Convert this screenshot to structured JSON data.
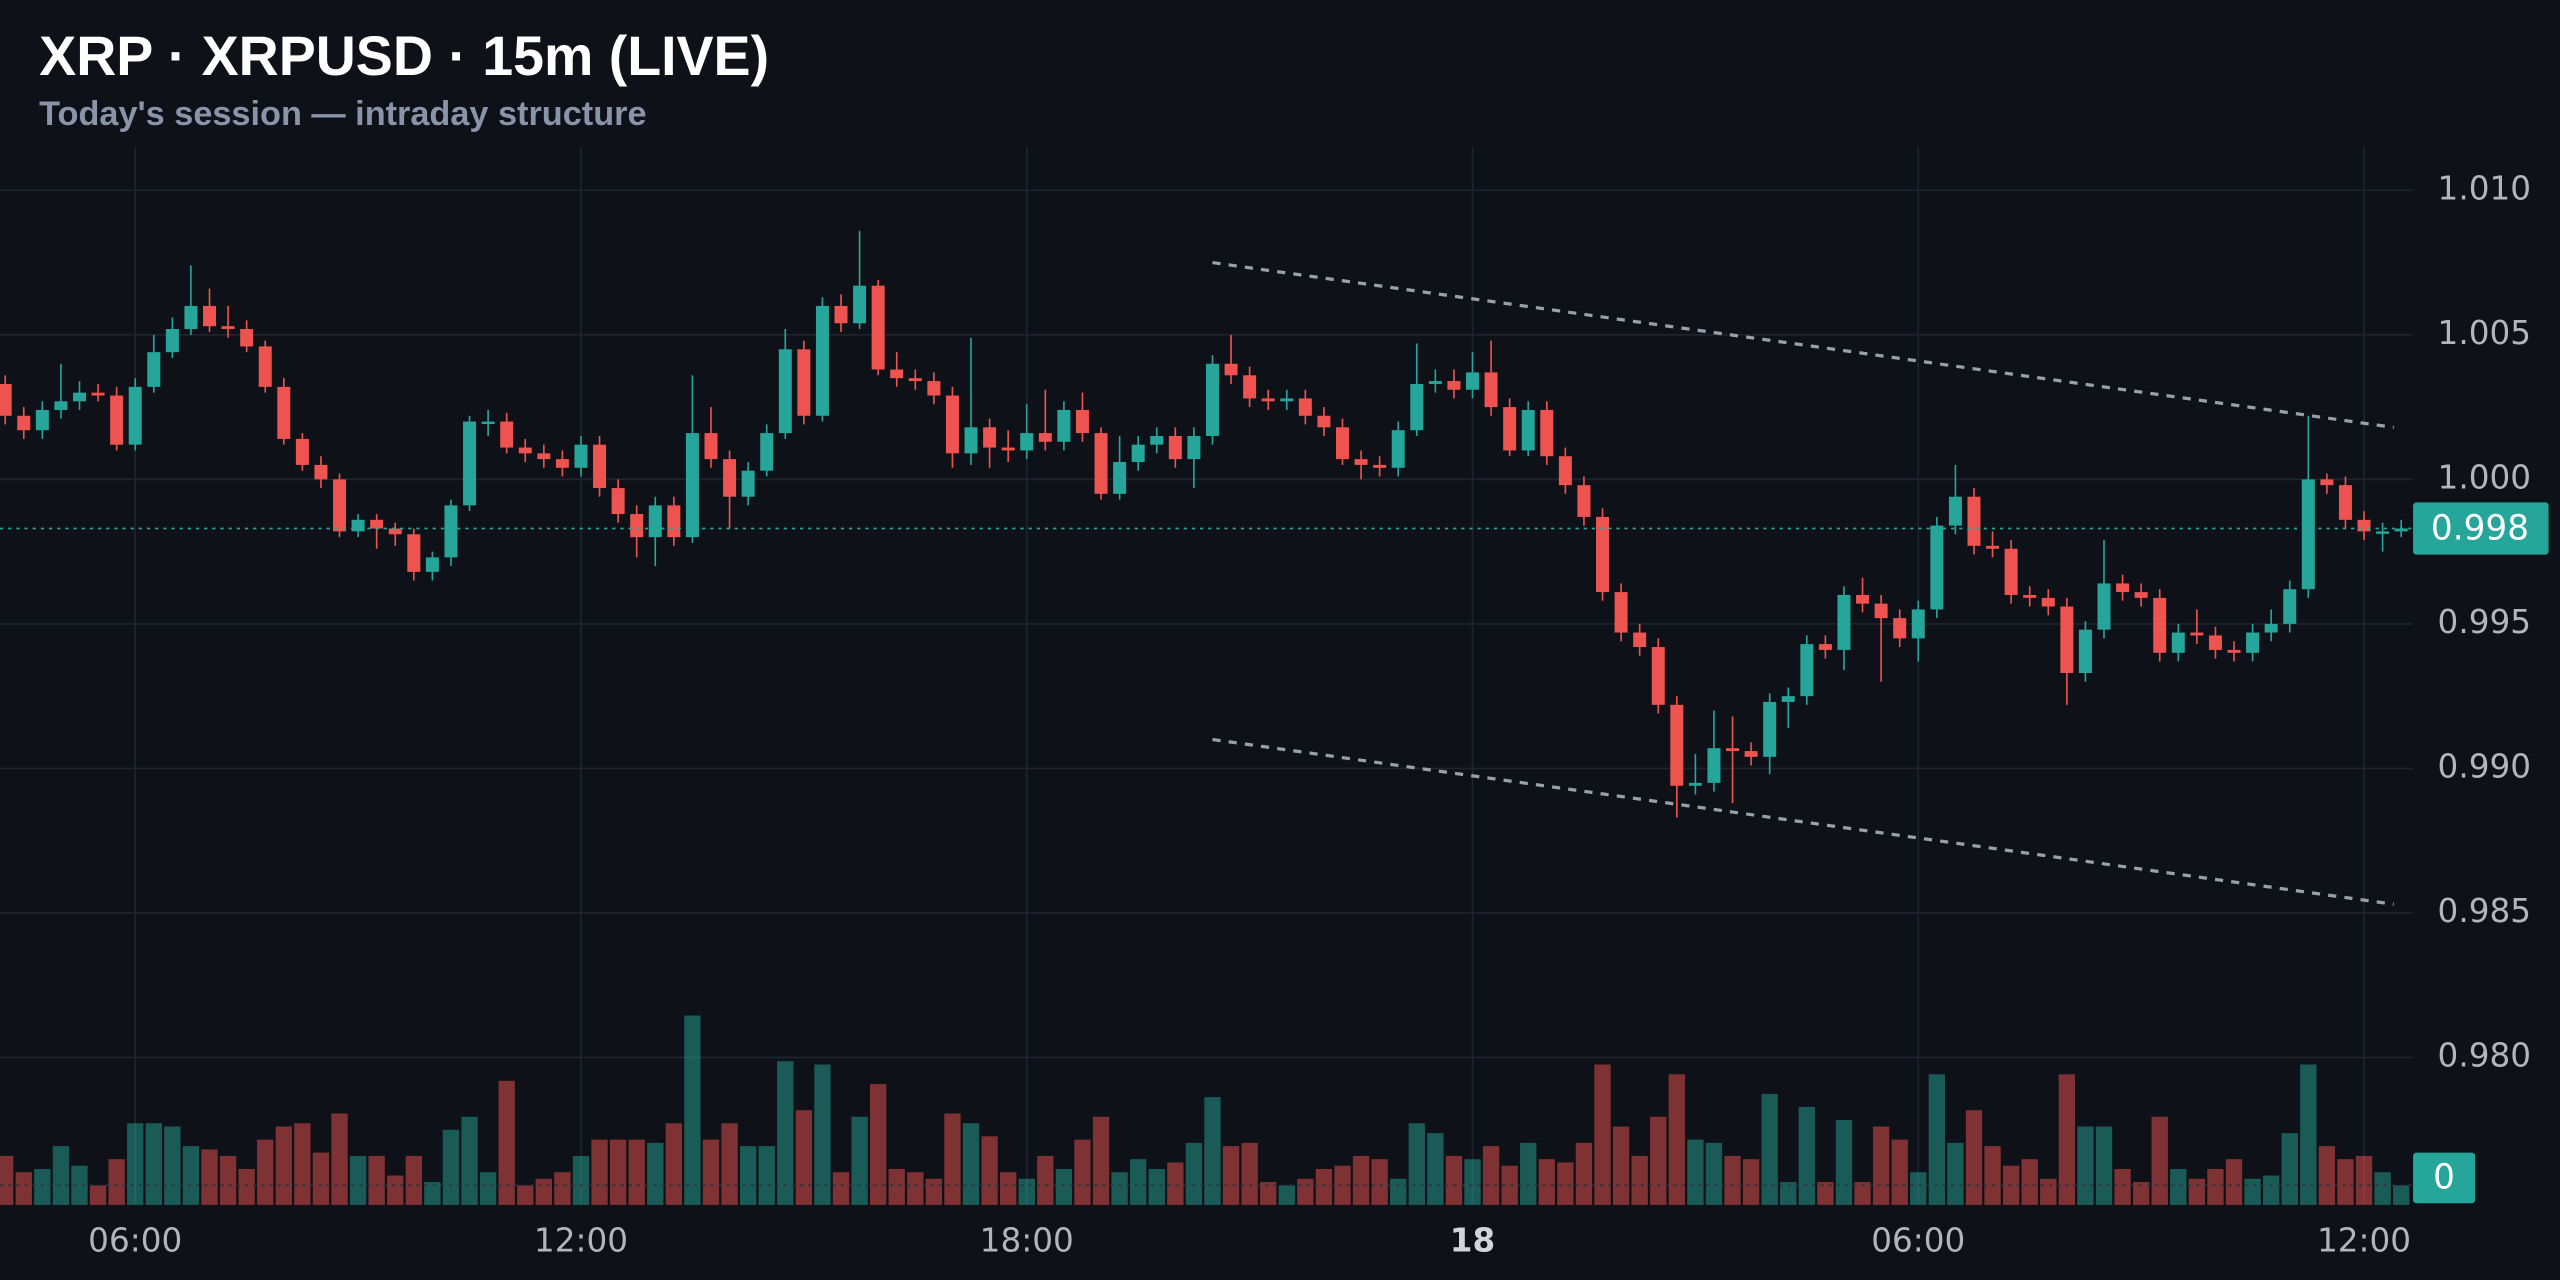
{
  "chart_data": {
    "type": "candlestick",
    "title": "XRP · XRPUSD · 15m (LIVE)",
    "subtitle": "Today's session — intraday structure",
    "up_color": "#26a69a",
    "down_color": "#ef5350",
    "grid": true,
    "xlim": [
      -19.82,
      12.66
    ],
    "xticks": [
      {
        "value": -18,
        "label": "06:00"
      },
      {
        "value": -12,
        "label": "12:00"
      },
      {
        "value": -6,
        "label": "18:00"
      },
      {
        "value": 0,
        "label": "18"
      },
      {
        "value": 6,
        "label": "06:00"
      },
      {
        "value": 12,
        "label": "12:00"
      }
    ],
    "ylim": [
      0.9749,
      1.0115
    ],
    "yticks": [
      {
        "value": 1.01,
        "label": "1.010"
      },
      {
        "value": 1.005,
        "label": "1.005"
      },
      {
        "value": 1.0,
        "label": "1.000"
      },
      {
        "value": 0.995,
        "label": "0.995"
      },
      {
        "value": 0.99,
        "label": "0.990"
      },
      {
        "value": 0.985,
        "label": "0.985"
      },
      {
        "value": 0.98,
        "label": "0.980"
      }
    ],
    "last_price_label": "0.998",
    "vlim": [
      0,
      140
    ],
    "vticks": [
      0
    ],
    "x": [
      -19.75,
      -19.5,
      -19.25,
      -19,
      -18.75,
      -18.5,
      -18.25,
      -18,
      -17.75,
      -17.5,
      -17.25,
      -17,
      -16.75,
      -16.5,
      -16.25,
      -16,
      -15.75,
      -15.5,
      -15.25,
      -15,
      -14.75,
      -14.5,
      -14.25,
      -14,
      -13.75,
      -13.5,
      -13.25,
      -13,
      -12.75,
      -12.5,
      -12.25,
      -12,
      -11.75,
      -11.5,
      -11.25,
      -11,
      -10.75,
      -10.5,
      -10.25,
      -10,
      -9.75,
      -9.5,
      -9.25,
      -9,
      -8.75,
      -8.5,
      -8.25,
      -8,
      -7.75,
      -7.5,
      -7.25,
      -7,
      -6.75,
      -6.5,
      -6.25,
      -6,
      -5.75,
      -5.5,
      -5.25,
      -5,
      -4.75,
      -4.5,
      -4.25,
      -4,
      -3.75,
      -3.5,
      -3.25,
      -3,
      -2.75,
      -2.5,
      -2.25,
      -2,
      -1.75,
      -1.5,
      -1.25,
      -1,
      -0.75,
      -0.5,
      -0.25,
      0,
      0.25,
      0.5,
      0.75,
      1,
      1.25,
      1.5,
      1.75,
      2,
      2.25,
      2.5,
      2.75,
      3,
      3.25,
      3.5,
      3.75,
      4,
      4.25,
      4.5,
      4.75,
      5,
      5.25,
      5.5,
      5.75,
      6,
      6.25,
      6.5,
      6.75,
      7,
      7.25,
      7.5,
      7.75,
      8,
      8.25,
      8.5,
      8.75,
      9,
      9.25,
      9.5,
      9.75,
      10,
      10.25,
      10.5,
      10.75,
      11,
      11.25,
      11.5,
      11.75,
      12,
      12.25,
      12.5
    ],
    "open": [
      1.0033,
      1.0022,
      1.0017,
      1.0024,
      1.0027,
      1.003,
      1.0029,
      1.0012,
      1.0032,
      1.0044,
      1.0052,
      1.006,
      1.0053,
      1.0052,
      1.0046,
      1.0032,
      1.0014,
      1.0005,
      1.0,
      0.9982,
      0.9986,
      0.9983,
      0.9981,
      0.9968,
      0.9973,
      0.9991,
      1.002,
      1.002,
      1.0011,
      1.0009,
      1.0007,
      1.0004,
      1.0012,
      0.9997,
      0.9988,
      0.998,
      0.9991,
      0.998,
      1.0016,
      1.0007,
      0.9994,
      1.0003,
      1.0016,
      1.0045,
      1.0022,
      1.006,
      1.0054,
      1.0067,
      1.0038,
      1.0035,
      1.0034,
      1.0029,
      1.0009,
      1.0018,
      1.0011,
      1.001,
      1.0016,
      1.0013,
      1.0024,
      1.0016,
      0.9995,
      1.0006,
      1.0012,
      1.0015,
      1.0007,
      1.0015,
      1.004,
      1.0036,
      1.0028,
      1.0027,
      1.0028,
      1.0022,
      1.0018,
      1.0007,
      1.0005,
      1.0004,
      1.0017,
      1.0033,
      1.0034,
      1.0031,
      1.0037,
      1.0025,
      1.001,
      1.0024,
      1.0008,
      0.9998,
      0.9987,
      0.9961,
      0.9947,
      0.9942,
      0.9922,
      0.9894,
      0.9895,
      0.9907,
      0.9906,
      0.9904,
      0.9923,
      0.9925,
      0.9943,
      0.9941,
      0.996,
      0.9957,
      0.9952,
      0.9945,
      0.9955,
      0.9984,
      0.9994,
      0.9977,
      0.9976,
      0.996,
      0.9959,
      0.9956,
      0.9933,
      0.9948,
      0.9964,
      0.9961,
      0.9959,
      0.994,
      0.9947,
      0.9946,
      0.9941,
      0.994,
      0.9947,
      0.995,
      0.9962,
      1.0,
      0.9998,
      0.9986,
      0.9982,
      0.9982
    ],
    "high": [
      1.0036,
      1.0025,
      1.0027,
      1.004,
      1.0034,
      1.0033,
      1.0032,
      1.0035,
      1.005,
      1.0056,
      1.0074,
      1.0066,
      1.006,
      1.0055,
      1.0048,
      1.0035,
      1.0016,
      1.0008,
      1.0002,
      0.9988,
      0.9988,
      0.9985,
      0.9983,
      0.9975,
      0.9993,
      1.0022,
      1.0024,
      1.0023,
      1.0014,
      1.0012,
      1.001,
      1.0015,
      1.0015,
      1.0,
      0.9991,
      0.9994,
      0.9994,
      1.0036,
      1.0025,
      1.001,
      1.0006,
      1.0019,
      1.0052,
      1.0048,
      1.0063,
      1.0064,
      1.0086,
      1.0069,
      1.0044,
      1.0038,
      1.0037,
      1.0032,
      1.0049,
      1.0021,
      1.0017,
      1.0026,
      1.0031,
      1.0027,
      1.003,
      1.0018,
      1.0015,
      1.0015,
      1.0018,
      1.0018,
      1.0018,
      1.0043,
      1.005,
      1.0039,
      1.0031,
      1.0031,
      1.0031,
      1.0025,
      1.0021,
      1.001,
      1.0008,
      1.002,
      1.0047,
      1.0038,
      1.0038,
      1.0044,
      1.0048,
      1.0028,
      1.0027,
      1.0027,
      1.0011,
      1.0001,
      0.999,
      0.9964,
      0.995,
      0.9945,
      0.9925,
      0.9905,
      0.992,
      0.9918,
      0.9909,
      0.9926,
      0.9928,
      0.9946,
      0.9946,
      0.9963,
      0.9966,
      0.996,
      0.9955,
      0.9958,
      0.9987,
      1.0005,
      0.9997,
      0.9982,
      0.9979,
      0.9963,
      0.9962,
      0.9959,
      0.9951,
      0.9979,
      0.9967,
      0.9964,
      0.9962,
      0.995,
      0.9955,
      0.9949,
      0.9944,
      0.995,
      0.9955,
      0.9965,
      1.0022,
      1.0002,
      1.0001,
      0.9989,
      0.9985,
      0.9986
    ],
    "low": [
      1.0019,
      1.0014,
      1.0014,
      1.0021,
      1.0024,
      1.0027,
      1.001,
      1.001,
      1.003,
      1.0042,
      1.005,
      1.0051,
      1.0049,
      1.0044,
      1.003,
      1.0012,
      1.0003,
      0.9997,
      0.998,
      0.998,
      0.9976,
      0.9977,
      0.9965,
      0.9965,
      0.997,
      0.9989,
      1.0015,
      1.0009,
      1.0006,
      1.0004,
      1.0001,
      1.0001,
      0.9994,
      0.9985,
      0.9973,
      0.997,
      0.9977,
      0.9978,
      1.0004,
      0.9983,
      0.9991,
      1.0001,
      1.0014,
      1.0019,
      1.002,
      1.0051,
      1.0052,
      1.0036,
      1.0032,
      1.0031,
      1.0026,
      1.0004,
      1.0005,
      1.0004,
      1.0006,
      1.0007,
      1.001,
      1.001,
      1.0013,
      0.9993,
      0.9993,
      1.0003,
      1.0009,
      1.0004,
      0.9997,
      1.0012,
      1.0033,
      1.0025,
      1.0024,
      1.0024,
      1.0019,
      1.0015,
      1.0005,
      1.0,
      1.0001,
      1.0001,
      1.0015,
      1.003,
      1.0028,
      1.0028,
      1.0022,
      1.0008,
      1.0008,
      1.0005,
      0.9995,
      0.9984,
      0.9958,
      0.9944,
      0.9939,
      0.9919,
      0.9883,
      0.9891,
      0.9892,
      0.9888,
      0.9901,
      0.9898,
      0.9914,
      0.9922,
      0.9938,
      0.9934,
      0.9954,
      0.993,
      0.9942,
      0.9937,
      0.9952,
      0.9981,
      0.9974,
      0.9973,
      0.9957,
      0.9956,
      0.9953,
      0.9922,
      0.993,
      0.9945,
      0.9958,
      0.9956,
      0.9937,
      0.9937,
      0.9943,
      0.9938,
      0.9937,
      0.9937,
      0.9944,
      0.9947,
      0.9959,
      0.9995,
      0.9983,
      0.9979,
      0.9975,
      0.998
    ],
    "close": [
      1.0022,
      1.0017,
      1.0024,
      1.0027,
      1.003,
      1.0029,
      1.0012,
      1.0032,
      1.0044,
      1.0052,
      1.006,
      1.0053,
      1.0052,
      1.0046,
      1.0032,
      1.0014,
      1.0005,
      1.0,
      0.9982,
      0.9986,
      0.9983,
      0.9981,
      0.9968,
      0.9973,
      0.9991,
      1.002,
      1.002,
      1.0011,
      1.0009,
      1.0007,
      1.0004,
      1.0012,
      0.9997,
      0.9988,
      0.998,
      0.9991,
      0.998,
      1.0016,
      1.0007,
      0.9994,
      1.0003,
      1.0016,
      1.0045,
      1.0022,
      1.006,
      1.0054,
      1.0067,
      1.0038,
      1.0035,
      1.0034,
      1.0029,
      1.0009,
      1.0018,
      1.0011,
      1.001,
      1.0016,
      1.0013,
      1.0024,
      1.0016,
      0.9995,
      1.0006,
      1.0012,
      1.0015,
      1.0007,
      1.0015,
      1.004,
      1.0036,
      1.0028,
      1.0027,
      1.0028,
      1.0022,
      1.0018,
      1.0007,
      1.0005,
      1.0004,
      1.0017,
      1.0033,
      1.0034,
      1.0031,
      1.0037,
      1.0025,
      1.001,
      1.0024,
      1.0008,
      0.9998,
      0.9987,
      0.9961,
      0.9947,
      0.9942,
      0.9922,
      0.9894,
      0.9895,
      0.9907,
      0.9906,
      0.9904,
      0.9923,
      0.9925,
      0.9943,
      0.9941,
      0.996,
      0.9957,
      0.9952,
      0.9945,
      0.9955,
      0.9984,
      0.9994,
      0.9977,
      0.9976,
      0.996,
      0.9959,
      0.9956,
      0.9933,
      0.9948,
      0.9964,
      0.9961,
      0.9959,
      0.994,
      0.9947,
      0.9946,
      0.9941,
      0.994,
      0.9947,
      0.995,
      0.9962,
      1.0,
      0.9998,
      0.9986,
      0.9982,
      0.9982,
      0.9983
    ],
    "volume": [
      30,
      20,
      22,
      36,
      24,
      12,
      28,
      50,
      50,
      48,
      36,
      34,
      30,
      22,
      40,
      48,
      50,
      32,
      56,
      30,
      30,
      18,
      30,
      14,
      46,
      54,
      20,
      76,
      12,
      16,
      20,
      30,
      40,
      40,
      40,
      38,
      50,
      116,
      40,
      50,
      36,
      36,
      88,
      58,
      86,
      20,
      54,
      74,
      22,
      20,
      16,
      56,
      50,
      42,
      20,
      16,
      30,
      22,
      40,
      54,
      20,
      28,
      22,
      26,
      38,
      66,
      36,
      38,
      14,
      12,
      16,
      22,
      24,
      30,
      28,
      16,
      50,
      44,
      30,
      28,
      36,
      24,
      38,
      28,
      26,
      38,
      86,
      48,
      30,
      54,
      80,
      40,
      38,
      30,
      28,
      68,
      14,
      60,
      14,
      52,
      14,
      48,
      40,
      20,
      80,
      38,
      58,
      36,
      24,
      28,
      16,
      80,
      48,
      48,
      22,
      14,
      54,
      22,
      16,
      22,
      28,
      16,
      18,
      44,
      86,
      36,
      28,
      30,
      20,
      12
    ],
    "trendlines": [
      {
        "x": [
          -3.5,
          12.4
        ],
        "y": [
          1.0075,
          1.0018
        ]
      },
      {
        "x": [
          -3.5,
          12.4
        ],
        "y": [
          0.991,
          0.9853
        ]
      }
    ]
  }
}
